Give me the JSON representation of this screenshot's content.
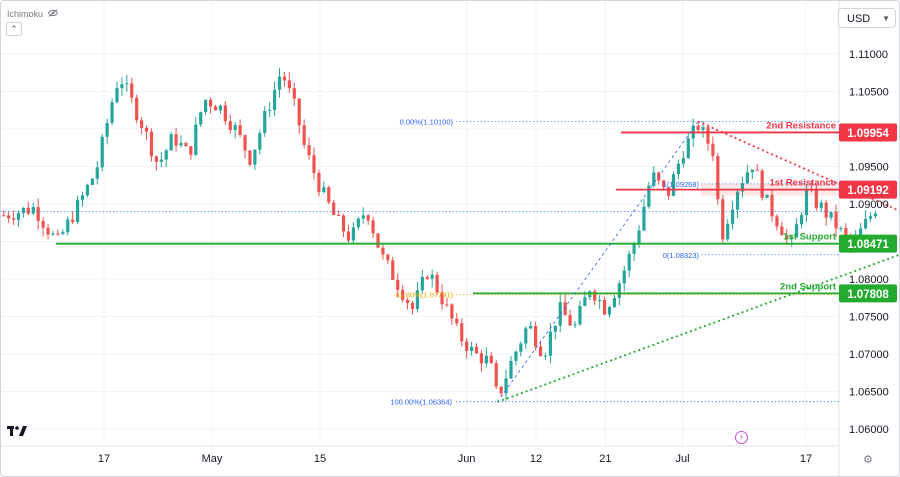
{
  "header": {
    "indicator_label": "Ichimoku",
    "eye_icon": "eye-crossed-icon",
    "collapse_icon": "chevron-up-icon",
    "currency": "USD",
    "currency_icon": "chevron-down-icon",
    "logo": "TV",
    "settings_icon": "gear-icon",
    "flash_icon": "lightning-icon"
  },
  "chart_data": {
    "type": "candlestick",
    "price_ticks": [
      "1.11000",
      "1.10500",
      "1.10000",
      "1.09500",
      "1.09000",
      "1.08500",
      "1.08000",
      "1.07500",
      "1.07000",
      "1.06500",
      "1.06000"
    ],
    "price_tick_values": [
      1.11,
      1.105,
      1.1,
      1.095,
      1.09,
      1.085,
      1.08,
      1.075,
      1.07,
      1.065,
      1.06
    ],
    "ylim": [
      1.059,
      1.1155
    ],
    "date_ticks": [
      {
        "label": "17",
        "date": "2024-04-17"
      },
      {
        "label": "May",
        "date": "2024-05-01"
      },
      {
        "label": "15",
        "date": "2024-05-15"
      },
      {
        "label": "Jun",
        "date": "2024-06-03"
      },
      {
        "label": "12",
        "date": "2024-06-12"
      },
      {
        "label": "21",
        "date": "2024-06-21"
      },
      {
        "label": "Jul",
        "date": "2024-07-01"
      },
      {
        "label": "17",
        "date": "2024-07-17"
      }
    ],
    "close_path": [
      [
        "2024-04-04",
        1.0885
      ],
      [
        "2024-04-08",
        1.0895
      ],
      [
        "2024-04-10",
        1.0862
      ],
      [
        "2024-04-11",
        1.0849
      ],
      [
        "2024-04-14",
        1.0905
      ],
      [
        "2024-04-16",
        1.0945
      ],
      [
        "2024-04-18",
        1.1035
      ],
      [
        "2024-04-19",
        1.1072
      ],
      [
        "2024-04-22",
        1.1005
      ],
      [
        "2024-04-24",
        1.0952
      ],
      [
        "2024-04-26",
        1.099
      ],
      [
        "2024-04-28",
        1.0965
      ],
      [
        "2024-04-30",
        1.104
      ],
      [
        "2024-05-02",
        1.103
      ],
      [
        "2024-05-04",
        1.1
      ],
      [
        "2024-05-06",
        1.096
      ],
      [
        "2024-05-08",
        1.102
      ],
      [
        "2024-05-10",
        1.1078
      ],
      [
        "2024-05-12",
        1.102
      ],
      [
        "2024-05-13",
        1.0975
      ],
      [
        "2024-05-15",
        1.0922
      ],
      [
        "2024-05-17",
        1.088
      ],
      [
        "2024-05-19",
        1.0853
      ],
      [
        "2024-05-21",
        1.0895
      ],
      [
        "2024-05-23",
        1.083
      ],
      [
        "2024-05-25",
        1.0795
      ],
      [
        "2024-05-27",
        1.076
      ],
      [
        "2024-05-29",
        1.0812
      ],
      [
        "2024-05-31",
        1.077
      ],
      [
        "2024-06-02",
        1.0725
      ],
      [
        "2024-06-04",
        1.07
      ],
      [
        "2024-06-06",
        1.069
      ],
      [
        "2024-06-07",
        1.064
      ],
      [
        "2024-06-09",
        1.0695
      ],
      [
        "2024-06-11",
        1.074
      ],
      [
        "2024-06-13",
        1.07
      ],
      [
        "2024-06-15",
        1.076
      ],
      [
        "2024-06-17",
        1.0735
      ],
      [
        "2024-06-19",
        1.079
      ],
      [
        "2024-06-21",
        1.076
      ],
      [
        "2024-06-23",
        1.08
      ],
      [
        "2024-06-25",
        1.0855
      ],
      [
        "2024-06-27",
        1.094
      ],
      [
        "2024-06-29",
        1.091
      ],
      [
        "2024-07-01",
        1.097
      ],
      [
        "2024-07-03",
        1.1005
      ],
      [
        "2024-07-05",
        1.097
      ],
      [
        "2024-07-06",
        1.0855
      ],
      [
        "2024-07-08",
        1.092
      ],
      [
        "2024-07-10",
        1.0955
      ],
      [
        "2024-07-12",
        1.09
      ],
      [
        "2024-07-14",
        1.0865
      ],
      [
        "2024-07-15",
        1.084
      ],
      [
        "2024-07-17",
        1.0915
      ],
      [
        "2024-07-19",
        1.0895
      ],
      [
        "2024-07-21",
        1.087
      ],
      [
        "2024-07-23",
        1.084
      ],
      [
        "2024-07-24",
        1.0862
      ],
      [
        "2024-07-26",
        1.0895
      ]
    ],
    "levels": [
      {
        "name": "2nd Resistance",
        "value": 1.09954,
        "label": "1.09954",
        "color": "#f23645",
        "style": "solid"
      },
      {
        "name": "1st Resistance",
        "value": 1.09192,
        "label": "1.09192",
        "color": "#f23645",
        "style": "solid"
      },
      {
        "name": "1st Support",
        "value": 1.08471,
        "label": "1.08471",
        "color": "#22ab2e",
        "style": "solid"
      },
      {
        "name": "2nd Support",
        "value": 1.07808,
        "label": "1.07808",
        "color": "#22ab2e",
        "style": "solid"
      }
    ],
    "fib_labels": [
      {
        "text": "0.00%(1.10100)",
        "value": 1.101,
        "color": "#2962ff",
        "anchor": "end"
      },
      {
        "text": "61.80%(1.07791)",
        "value": 1.07791,
        "color": "#f0a500",
        "anchor": "end"
      },
      {
        "text": "100.00%(1.06364)",
        "value": 1.06364,
        "color": "#2962ff",
        "anchor": "end"
      },
      {
        "text": "1(1.09268)",
        "value": 1.09268,
        "color": "#2962ff",
        "anchor": "end"
      },
      {
        "text": "0(1.08323)",
        "value": 1.08323,
        "color": "#2962ff",
        "anchor": "end"
      }
    ],
    "trendlines": [
      {
        "kind": "resistance",
        "color": "#f23645",
        "from": [
          "2024-07-03",
          1.101
        ],
        "to": [
          "2024-08-06",
          1.0855
        ]
      },
      {
        "kind": "support",
        "color": "#22ab2e",
        "from": [
          "2024-06-07",
          1.0636
        ],
        "to": [
          "2024-08-06",
          1.0862
        ]
      },
      {
        "kind": "fib-diagonal",
        "color": "#2962ff",
        "from": [
          "2024-06-07",
          1.0636
        ],
        "to": [
          "2024-07-03",
          1.101
        ]
      }
    ],
    "colors": {
      "up": "#26a69a",
      "down": "#ef5350",
      "resistance": "#f23645",
      "support": "#22ab2e",
      "fib": "#2962ff",
      "grid": "#f0f3fa"
    }
  }
}
